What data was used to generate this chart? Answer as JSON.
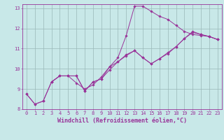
{
  "title": "",
  "xlabel": "Windchill (Refroidissement éolien,°C)",
  "ylabel": "",
  "bg_color": "#c8e8e8",
  "line_color": "#993399",
  "xlim": [
    -0.5,
    23.5
  ],
  "ylim": [
    8,
    13.2
  ],
  "xticks": [
    0,
    1,
    2,
    3,
    4,
    5,
    6,
    7,
    8,
    9,
    10,
    11,
    12,
    13,
    14,
    15,
    16,
    17,
    18,
    19,
    20,
    21,
    22,
    23
  ],
  "yticks": [
    8,
    9,
    10,
    11,
    12,
    13
  ],
  "series1_x": [
    0,
    1,
    2,
    3,
    4,
    5,
    6,
    7,
    8,
    9,
    10,
    11,
    12,
    13,
    14,
    15,
    16,
    17,
    18,
    19,
    20,
    21,
    22,
    23
  ],
  "series1_y": [
    8.75,
    8.25,
    8.4,
    9.35,
    9.65,
    9.65,
    9.65,
    8.9,
    9.35,
    9.5,
    10.1,
    10.55,
    11.65,
    13.1,
    13.1,
    12.85,
    12.6,
    12.45,
    12.15,
    11.85,
    11.7,
    11.65,
    11.6,
    11.45
  ],
  "series2_x": [
    0,
    1,
    2,
    3,
    4,
    5,
    6,
    7,
    8,
    9,
    10,
    11,
    12,
    13,
    14,
    15,
    16,
    17,
    18,
    19,
    20,
    21,
    22,
    23
  ],
  "series2_y": [
    8.75,
    8.25,
    8.4,
    9.35,
    9.65,
    9.65,
    9.3,
    9.0,
    9.2,
    9.6,
    10.1,
    10.35,
    10.7,
    10.9,
    10.55,
    10.25,
    10.5,
    10.8,
    11.1,
    11.5,
    11.8,
    11.7,
    11.6,
    11.45
  ],
  "series3_x": [
    3,
    4,
    5,
    6,
    7,
    8,
    9,
    10,
    11,
    12,
    13,
    14,
    15,
    16,
    17,
    18,
    19,
    20,
    21,
    22,
    23
  ],
  "series3_y": [
    9.35,
    9.65,
    9.65,
    9.65,
    8.9,
    9.35,
    9.5,
    9.95,
    10.35,
    10.65,
    10.9,
    10.55,
    10.25,
    10.5,
    10.75,
    11.1,
    11.5,
    11.85,
    11.7,
    11.6,
    11.45
  ],
  "marker": "D",
  "markersize": 1.8,
  "linewidth": 0.7,
  "grid_color": "#9ab8b8",
  "tick_label_fontsize": 5.0,
  "xlabel_fontsize": 6.0
}
